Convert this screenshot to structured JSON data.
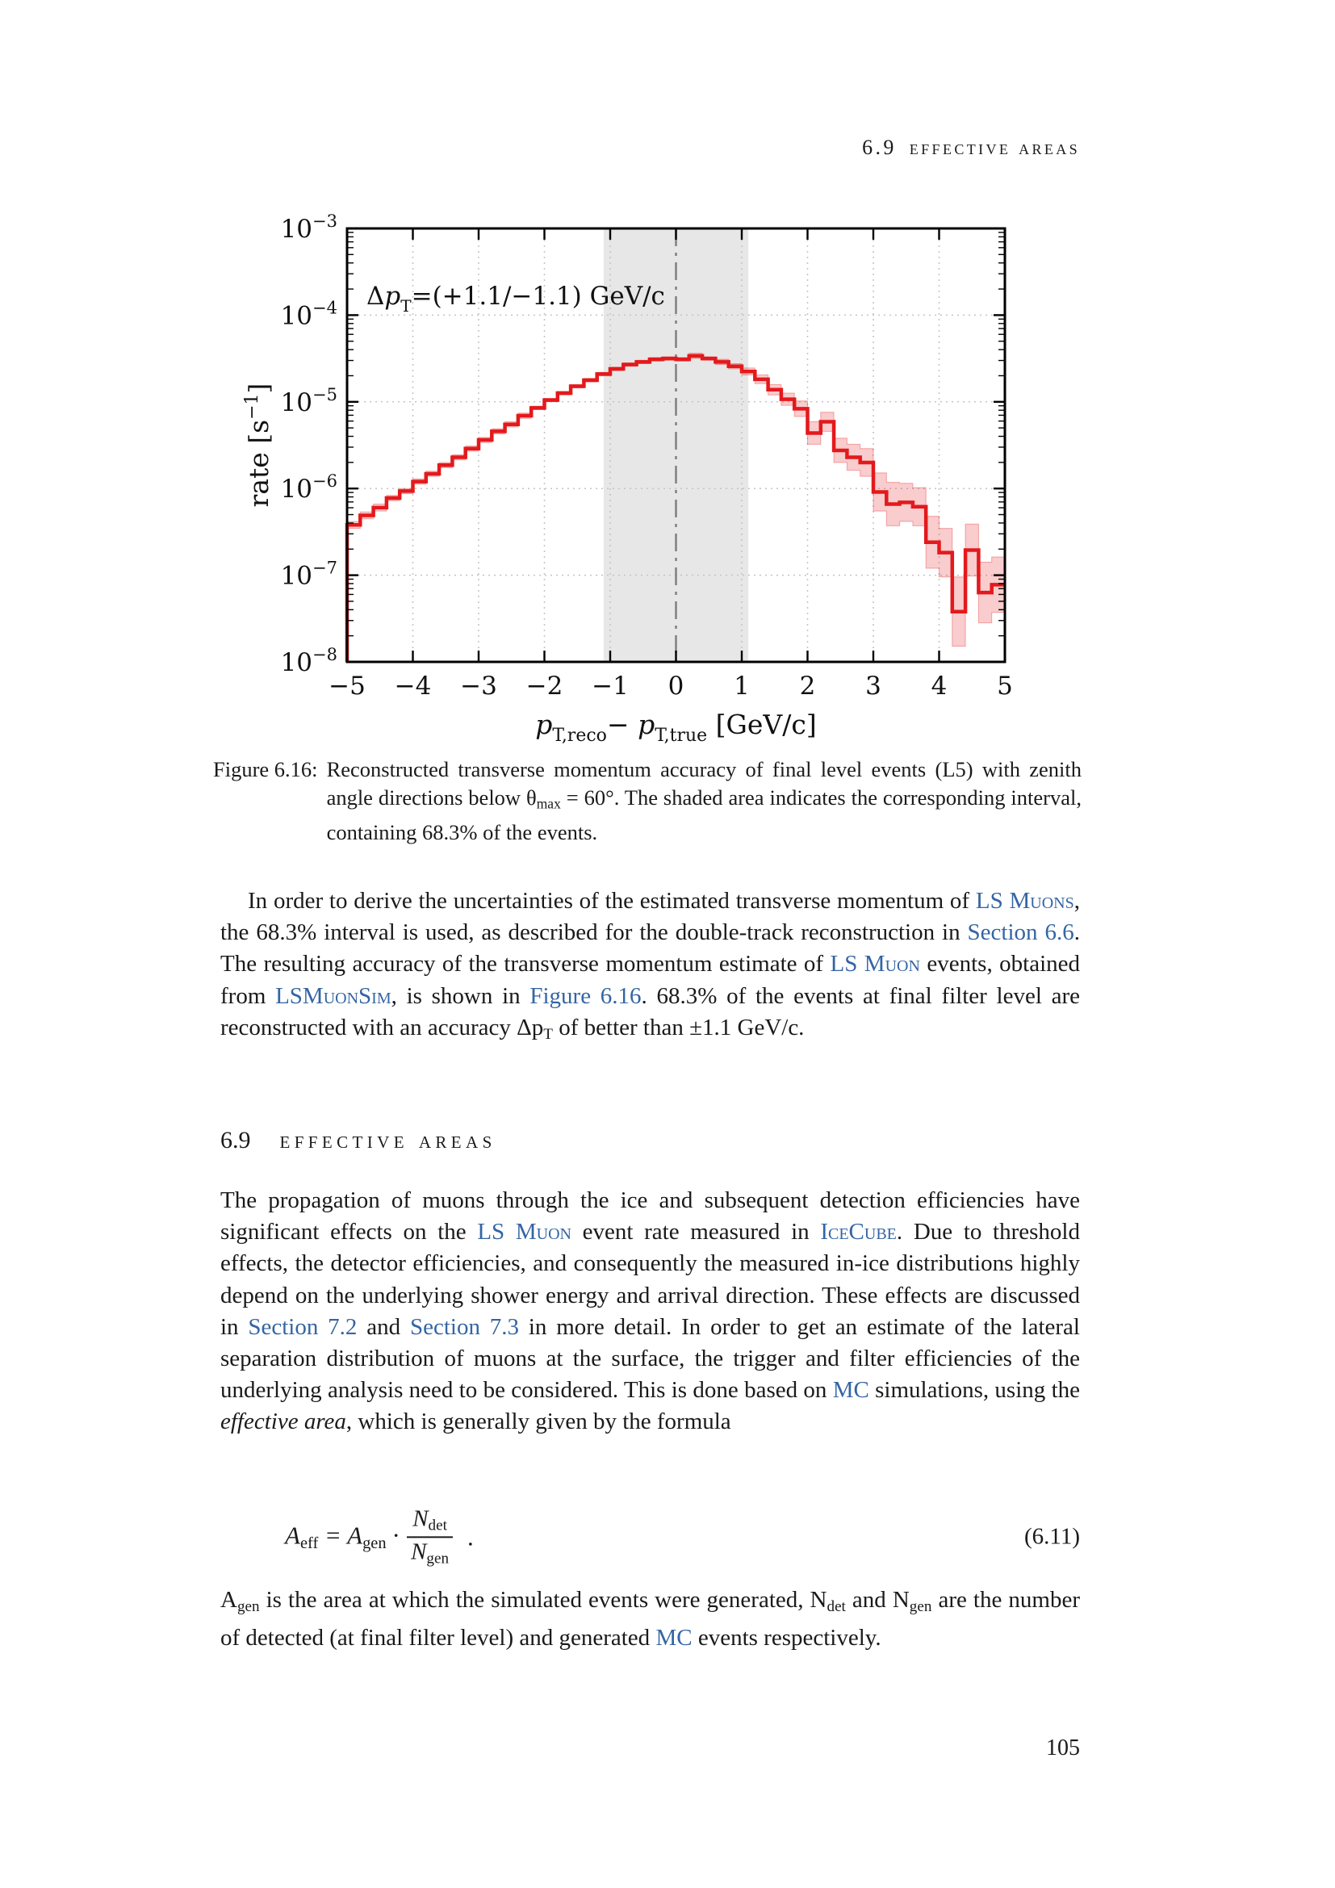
{
  "page": {
    "number": "105"
  },
  "header": {
    "number": "6.9",
    "title": "effective areas"
  },
  "section": {
    "number": "6.9",
    "title": "effective areas"
  },
  "caption": {
    "label": "Figure 6.16:",
    "runs": [
      {
        "s": "t",
        "x": "Reconstructed transverse momentum accuracy of final level events (L5) with zenith angle directions below θ"
      },
      {
        "s": "sub",
        "x": "max"
      },
      {
        "s": "t",
        "x": " = 60°. The shaded area indicates the corresponding interval, containing 68.3% of the events."
      }
    ]
  },
  "para1": {
    "runs": [
      {
        "s": "t",
        "x": "In order to derive the uncertainties of the estimated transverse momentum of "
      },
      {
        "s": "lsc",
        "x": "LS Muons"
      },
      {
        "s": "t",
        "x": ", the 68.3% interval is used, as described for the double-track reconstruction in "
      },
      {
        "s": "l",
        "x": "Section 6.6"
      },
      {
        "s": "t",
        "x": ". The resulting accuracy of the transverse momentum estimate of "
      },
      {
        "s": "lsc",
        "x": "LS Muon"
      },
      {
        "s": "t",
        "x": " events, obtained from "
      },
      {
        "s": "lsc",
        "x": "LSMuonSim"
      },
      {
        "s": "t",
        "x": ", is shown in "
      },
      {
        "s": "l",
        "x": "Figure 6.16"
      },
      {
        "s": "t",
        "x": ". 68.3% of the events at final filter level are reconstructed with an accuracy Δp"
      },
      {
        "s": "sub",
        "x": "T"
      },
      {
        "s": "t",
        "x": " of better than ±1.1 GeV/c."
      }
    ]
  },
  "para2": {
    "runs": [
      {
        "s": "t",
        "x": "The propagation of muons through the ice and subsequent detection efficiencies have significant effects on the "
      },
      {
        "s": "lsc",
        "x": "LS Muon"
      },
      {
        "s": "t",
        "x": " event rate measured in "
      },
      {
        "s": "lsc",
        "x": "IceCube"
      },
      {
        "s": "t",
        "x": ". Due to threshold effects, the detector efficiencies, and consequently the measured in-ice distributions highly depend on the underlying shower energy and arrival direction. These effects are discussed in "
      },
      {
        "s": "l",
        "x": "Section 7.2"
      },
      {
        "s": "t",
        "x": " and "
      },
      {
        "s": "l",
        "x": "Section 7.3"
      },
      {
        "s": "t",
        "x": " in more detail. In order to get an estimate of the lateral separation distribution of muons at the surface, the trigger and filter efficiencies of the underlying analysis need to be considered. This is done based on "
      },
      {
        "s": "l",
        "x": "MC"
      },
      {
        "s": "t",
        "x": " simulations, using the "
      },
      {
        "s": "i",
        "x": "effective area"
      },
      {
        "s": "t",
        "x": ", which is generally given by the formula"
      }
    ]
  },
  "equation": {
    "lhs_runs": [
      {
        "s": "v",
        "x": "A"
      },
      {
        "s": "sub",
        "x": "eff"
      },
      {
        "s": "t",
        "x": " = "
      },
      {
        "s": "v",
        "x": "A"
      },
      {
        "s": "sub",
        "x": "gen"
      },
      {
        "s": "t",
        "x": " · "
      }
    ],
    "numerator_runs": [
      {
        "s": "v",
        "x": "N"
      },
      {
        "s": "sub",
        "x": "det"
      }
    ],
    "denominator_runs": [
      {
        "s": "v",
        "x": "N"
      },
      {
        "s": "sub",
        "x": "gen"
      }
    ],
    "trail": ".",
    "tag": "(6.11)"
  },
  "para3": {
    "runs": [
      {
        "s": "t",
        "x": "A"
      },
      {
        "s": "sub",
        "x": "gen"
      },
      {
        "s": "t",
        "x": " is the area at which the simulated events were generated, N"
      },
      {
        "s": "sub",
        "x": "det"
      },
      {
        "s": "t",
        "x": " and N"
      },
      {
        "s": "sub",
        "x": "gen"
      },
      {
        "s": "t",
        "x": " are the number of detected (at final filter level) and generated "
      },
      {
        "s": "l",
        "x": "MC"
      },
      {
        "s": "t",
        "x": " events respectively."
      }
    ]
  },
  "chart_data": {
    "type": "step-histogram",
    "title": "",
    "annotation_runs": [
      {
        "s": "t",
        "x": "Δ"
      },
      {
        "s": "v",
        "x": "p"
      },
      {
        "s": "sub",
        "x": "T"
      },
      {
        "s": "t",
        "x": "=(+1.1/−1.1) GeV/c"
      }
    ],
    "xlabel_runs": [
      {
        "s": "v",
        "x": "p"
      },
      {
        "s": "sub",
        "x": "T,reco"
      },
      {
        "s": "t",
        "x": "− "
      },
      {
        "s": "v",
        "x": "p"
      },
      {
        "s": "sub",
        "x": "T,true"
      },
      {
        "s": "t",
        "x": " [GeV/c]"
      }
    ],
    "ylabel_runs": [
      {
        "s": "t",
        "x": "rate [s"
      },
      {
        "s": "sup",
        "x": "−1"
      },
      {
        "s": "t",
        "x": "]"
      }
    ],
    "xlim": [
      -5,
      5
    ],
    "ylog_lim": [
      -8,
      -3
    ],
    "xticks": [
      -5,
      -4,
      -3,
      -2,
      -1,
      0,
      1,
      2,
      3,
      4,
      5
    ],
    "ytick_exponents": [
      -3,
      -4,
      -5,
      -6,
      -7,
      -8
    ],
    "grid_x": [
      -4,
      -3,
      -2,
      -1,
      1,
      2,
      3,
      4
    ],
    "grid_y_exponents": [
      -4,
      -5,
      -6,
      -7
    ],
    "shaded_interval": [
      -1.1,
      1.1
    ],
    "vline_x": 0,
    "bin_start": -5,
    "bin_width": 0.2,
    "log10_rate": [
      -6.42,
      -6.31,
      -6.22,
      -6.11,
      -6.03,
      -5.92,
      -5.83,
      -5.73,
      -5.64,
      -5.54,
      -5.44,
      -5.34,
      -5.26,
      -5.16,
      -5.07,
      -4.98,
      -4.9,
      -4.82,
      -4.75,
      -4.68,
      -4.62,
      -4.57,
      -4.54,
      -4.51,
      -4.5,
      -4.51,
      -4.47,
      -4.5,
      -4.54,
      -4.59,
      -4.65,
      -4.74,
      -4.86,
      -4.97,
      -5.08,
      -5.36,
      -5.23,
      -5.56,
      -5.64,
      -5.7,
      -6.04,
      -6.18,
      -6.16,
      -6.21,
      -6.62,
      -6.74,
      -7.42,
      -6.71,
      -7.2,
      -7.11
    ],
    "log10_band_halfwidth": [
      0.04,
      0.04,
      0.04,
      0.03,
      0.03,
      0.03,
      0.03,
      0.03,
      0.03,
      0.03,
      0.03,
      0.03,
      0.03,
      0.03,
      0.02,
      0.02,
      0.02,
      0.02,
      0.02,
      0.02,
      0.02,
      0.02,
      0.02,
      0.02,
      0.02,
      0.02,
      0.03,
      0.02,
      0.03,
      0.03,
      0.04,
      0.05,
      0.06,
      0.07,
      0.09,
      0.13,
      0.11,
      0.14,
      0.15,
      0.16,
      0.22,
      0.25,
      0.22,
      0.22,
      0.3,
      0.28,
      0.4,
      0.3,
      0.35,
      0.32
    ],
    "colors": {
      "line": "#e3191c",
      "band": "#e3191c",
      "band_opacity": 0.22,
      "shade": "#e7e7e7",
      "grid": "#c4c4c4",
      "vline": "#7d7d7d",
      "axis": "#000000",
      "link_blue": "#3465a4"
    }
  }
}
